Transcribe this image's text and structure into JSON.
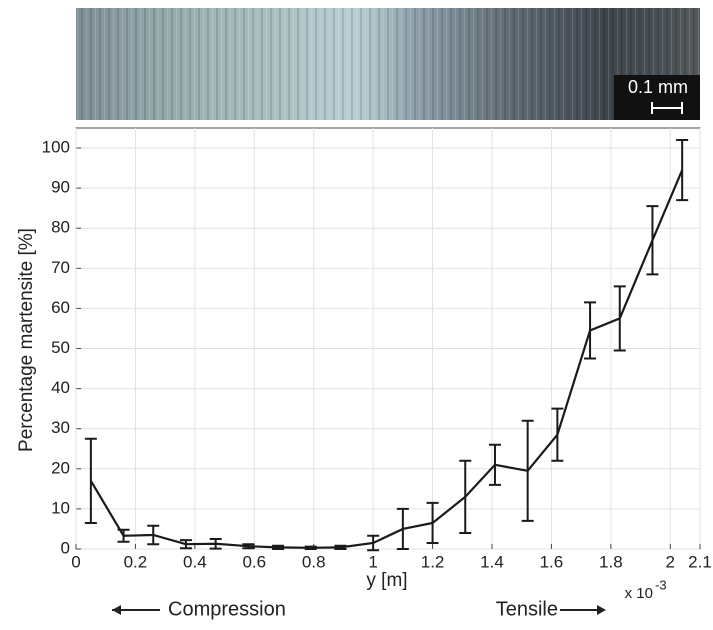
{
  "chart_data": {
    "type": "line",
    "ylabel": "Percentage martensite [%]",
    "xlabel": "y [m]",
    "x_multiplier": "x 10",
    "x_exponent": "-3",
    "scale_bar_label": "0.1 mm",
    "left_annotation": "Compression",
    "right_annotation": "Tensile",
    "x": [
      0.05,
      0.16,
      0.26,
      0.37,
      0.47,
      0.58,
      0.68,
      0.79,
      0.89,
      1.0,
      1.1,
      1.2,
      1.31,
      1.41,
      1.52,
      1.62,
      1.73,
      1.83,
      1.94,
      2.04
    ],
    "values": [
      17,
      3.3,
      3.5,
      1.2,
      1.3,
      0.7,
      0.4,
      0.3,
      0.4,
      1.5,
      5,
      6.5,
      13,
      21,
      19.5,
      28.5,
      54.5,
      57.5,
      77,
      94.5
    ],
    "errors": [
      10.5,
      1.5,
      2.3,
      1,
      1.2,
      0.5,
      0.4,
      0.3,
      0.4,
      1.8,
      5,
      5,
      9,
      5,
      12.5,
      6.5,
      7,
      8,
      8.5,
      7.5
    ],
    "color": "#1a1a1a",
    "xlim": [
      0,
      2.1
    ],
    "xticks": [
      0,
      0.2,
      0.4,
      0.6,
      0.8,
      1,
      1.2,
      1.4,
      1.6,
      1.8,
      2,
      2.1
    ],
    "ylim": [
      0,
      105
    ],
    "yticks": [
      0,
      10,
      20,
      30,
      40,
      50,
      60,
      70,
      80,
      90,
      100
    ],
    "grid": true
  }
}
